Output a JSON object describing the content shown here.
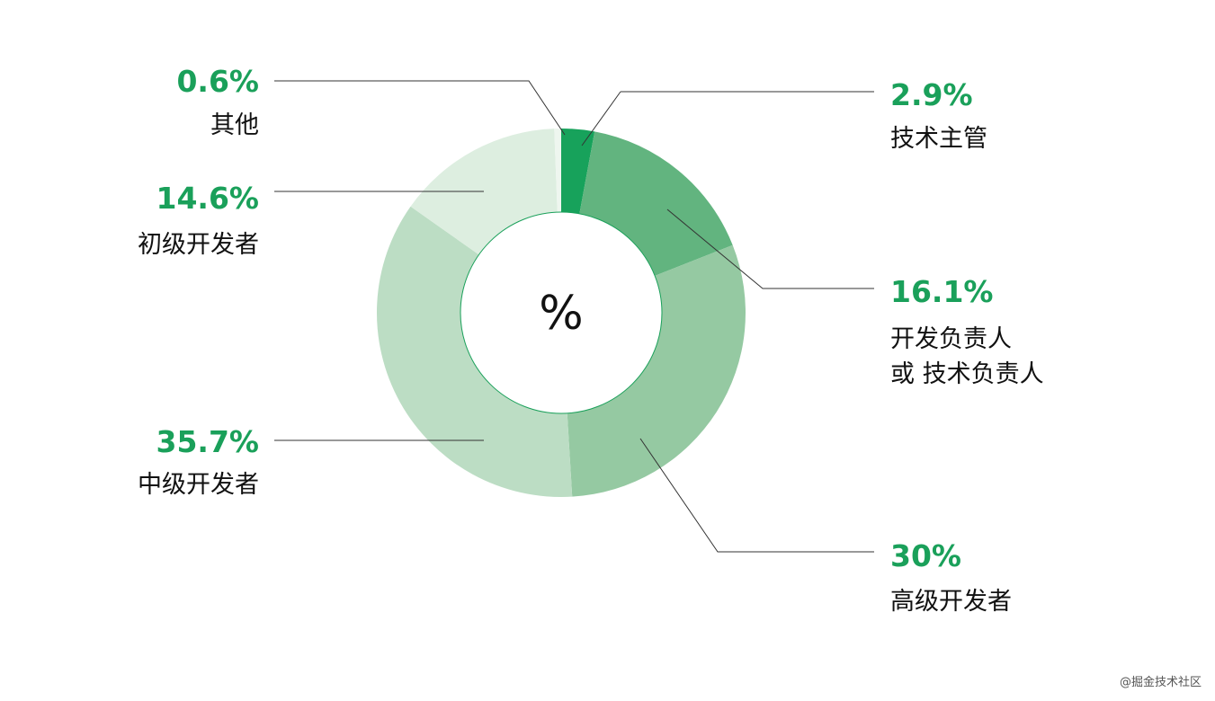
{
  "chart_data": {
    "type": "pie",
    "variant": "donut",
    "center_text": "%",
    "slices": [
      {
        "label": "技术主管",
        "value": 2.9,
        "display": "2.9%",
        "color": "#17a25b"
      },
      {
        "label": "开发负责人 或 技术负责人",
        "label_lines": [
          "开发负责人",
          "或 技术负责人"
        ],
        "value": 16.1,
        "display": "16.1%",
        "color": "#62b47f"
      },
      {
        "label": "高级开发者",
        "value": 30,
        "display": "30%",
        "color": "#95c9a2"
      },
      {
        "label": "中级开发者",
        "value": 35.7,
        "display": "35.7%",
        "color": "#bcddc4"
      },
      {
        "label": "初级开发者",
        "value": 14.6,
        "display": "14.6%",
        "color": "#ddeee0"
      },
      {
        "label": "其他",
        "value": 0.6,
        "display": "0.6%",
        "color": "#eef6ef"
      }
    ]
  },
  "watermark": "@掘金技术社区"
}
